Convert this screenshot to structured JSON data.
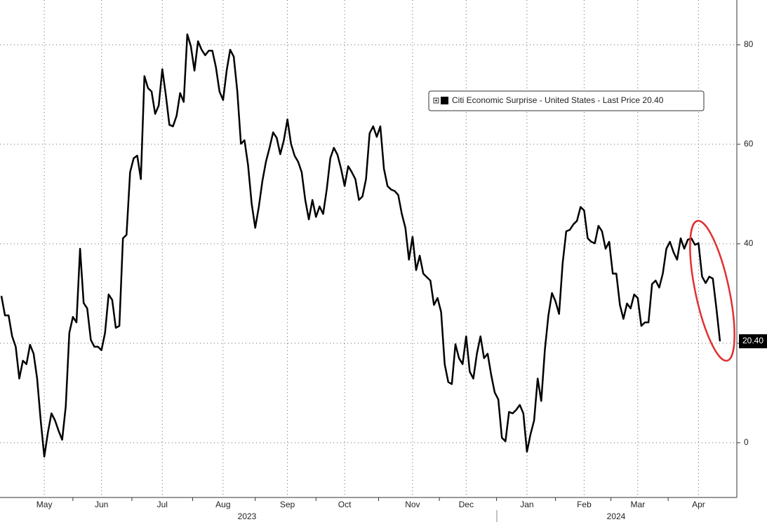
{
  "chart_data": {
    "type": "line",
    "categories": [
      null,
      null,
      null,
      null,
      null,
      null,
      null,
      null,
      null,
      null,
      null,
      null,
      "May",
      null,
      null,
      null,
      null,
      null,
      null,
      null,
      null,
      null,
      null,
      null,
      null,
      null,
      null,
      null,
      "Jun",
      null,
      null,
      null,
      null,
      null,
      null,
      null,
      null,
      null,
      null,
      null,
      null,
      null,
      null,
      null,
      null,
      "Jul",
      null,
      null,
      null,
      null,
      null,
      null,
      null,
      null,
      null,
      null,
      null,
      null,
      null,
      null,
      null,
      null,
      "Aug",
      null,
      null,
      null,
      null,
      null,
      null,
      null,
      null,
      null,
      null,
      null,
      null,
      null,
      null,
      null,
      null,
      null,
      "Sep",
      null,
      null,
      null,
      null,
      null,
      null,
      null,
      null,
      null,
      null,
      null,
      null,
      null,
      null,
      null,
      "Oct",
      null,
      null,
      null,
      null,
      null,
      null,
      null,
      null,
      null,
      null,
      null,
      null,
      null,
      null,
      null,
      null,
      null,
      null,
      "Nov",
      null,
      null,
      null,
      null,
      null,
      null,
      null,
      null,
      null,
      null,
      null,
      null,
      null,
      null,
      "Dec",
      null,
      null,
      null,
      null,
      null,
      null,
      null,
      null,
      null,
      null,
      null,
      null,
      null,
      null,
      null,
      null,
      "Jan",
      null,
      null,
      null,
      null,
      null,
      null,
      null,
      null,
      null,
      null,
      null,
      null,
      null,
      null,
      null,
      "Feb",
      null,
      null,
      null,
      null,
      null,
      null,
      null,
      null,
      null,
      null,
      null,
      null,
      null,
      null,
      "Mar",
      null,
      null,
      null,
      null,
      null,
      null,
      null,
      null,
      null,
      null,
      null,
      null,
      null,
      null,
      null,
      null,
      "Apr",
      null,
      null,
      null,
      null,
      null,
      null
    ],
    "year_labels": [
      "2023",
      "2024"
    ],
    "series": [
      {
        "name": "Citi Economic Surprise - United States - Last Price 20.40",
        "color": "#000000",
        "values": [
          29.5,
          25.6,
          25.6,
          21.4,
          19.3,
          12.9,
          16.5,
          15.8,
          19.7,
          17.9,
          12.9,
          4.5,
          -2.8,
          2.0,
          5.9,
          4.5,
          2.4,
          0.6,
          7.3,
          22.1,
          25.3,
          24.2,
          39.0,
          28.1,
          27.0,
          20.7,
          19.3,
          19.3,
          18.6,
          22.1,
          29.8,
          28.7,
          23.1,
          23.5,
          41.1,
          41.8,
          54.4,
          57.2,
          57.7,
          53.0,
          73.7,
          71.3,
          70.6,
          66.1,
          67.8,
          75.1,
          69.9,
          63.9,
          63.6,
          65.7,
          70.3,
          68.5,
          82.1,
          79.7,
          74.8,
          80.7,
          79.0,
          77.9,
          78.8,
          78.8,
          75.5,
          70.6,
          68.9,
          74.8,
          79.0,
          77.6,
          70.6,
          60.1,
          60.8,
          55.8,
          48.1,
          43.2,
          47.4,
          52.6,
          56.5,
          59.3,
          62.4,
          61.3,
          58.0,
          60.8,
          65.0,
          60.1,
          57.7,
          56.5,
          54.4,
          48.8,
          44.9,
          48.8,
          45.4,
          47.5,
          46.0,
          50.9,
          57.2,
          59.3,
          57.9,
          55.1,
          51.6,
          55.6,
          54.4,
          53.0,
          48.8,
          49.5,
          53.0,
          62.2,
          63.6,
          61.5,
          63.6,
          55.1,
          51.6,
          50.9,
          50.6,
          49.8,
          46.0,
          43.2,
          36.8,
          41.4,
          34.7,
          37.6,
          34.0,
          33.3,
          32.6,
          27.7,
          29.1,
          26.3,
          15.8,
          12.2,
          11.8,
          19.8,
          17.0,
          15.8,
          21.4,
          14.3,
          12.9,
          17.9,
          21.4,
          17.0,
          17.9,
          13.6,
          10.1,
          8.7,
          1.0,
          0.3,
          6.2,
          5.9,
          6.6,
          7.6,
          5.9,
          -1.8,
          1.7,
          4.5,
          12.9,
          8.4,
          18.6,
          25.6,
          30.1,
          28.4,
          25.9,
          36.1,
          42.5,
          42.8,
          43.9,
          44.6,
          47.4,
          46.7,
          41.1,
          40.4,
          40.1,
          43.6,
          42.5,
          39.0,
          40.4,
          34.0,
          34.0,
          27.7,
          24.9,
          28.0,
          27.0,
          29.8,
          29.1,
          23.5,
          24.2,
          24.2,
          31.9,
          32.6,
          31.2,
          34.0,
          39.0,
          40.4,
          38.3,
          36.8,
          41.1,
          39.0,
          40.8,
          41.1,
          39.8,
          40.1,
          33.4,
          32.1,
          33.4,
          33.0,
          27.0,
          20.4
        ]
      }
    ],
    "last_price_label": "20.40",
    "ylim": [
      -11,
      89
    ],
    "yticks": [
      0,
      20,
      40,
      60,
      80
    ],
    "grid": true,
    "legend": "top-right"
  }
}
